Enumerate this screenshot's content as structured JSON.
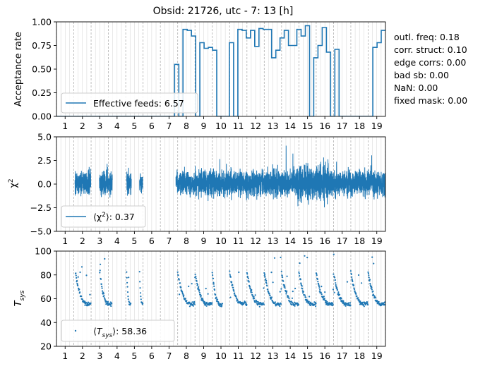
{
  "chart_data": [
    {
      "type": "line",
      "title": "Obsid: 21726, utc - 7: 13 [h]",
      "ylabel": "Acceptance rate",
      "xlim": [
        0.5,
        19.5
      ],
      "ylim": [
        0.0,
        1.0
      ],
      "yticks": [
        "0.00",
        "0.25",
        "0.50",
        "0.75",
        "1.00"
      ],
      "xticks": [
        "1",
        "2",
        "3",
        "4",
        "5",
        "6",
        "7",
        "8",
        "9",
        "10",
        "11",
        "12",
        "13",
        "14",
        "15",
        "16",
        "17",
        "18",
        "19"
      ],
      "legend": "Effective feeds: 6.57",
      "legend_position": "lower-left",
      "step_values": [
        0,
        0,
        0,
        0,
        0,
        0,
        0,
        0,
        0,
        0,
        0,
        0,
        0,
        0,
        0,
        0,
        0,
        0,
        0,
        0,
        0,
        0,
        0,
        0,
        0,
        0,
        0,
        0,
        0.55,
        0.0,
        0.92,
        0.91,
        0.85,
        0.0,
        0.78,
        0.72,
        0.73,
        0.7,
        0.0,
        0.0,
        0.0,
        0.78,
        0.0,
        0.92,
        0.91,
        0.83,
        0.91,
        0.74,
        0.93,
        0.92,
        0.92,
        0.62,
        0.7,
        0.83,
        0.91,
        0.75,
        0.75,
        0.92,
        0.85,
        0.96,
        0.0,
        0.62,
        0.75,
        0.94,
        0.68,
        0.0,
        0.71,
        0.0,
        0.0,
        0.0,
        0.0,
        0.0,
        0.0,
        0.0,
        0.0,
        0.73,
        0.78,
        0.91
      ]
    },
    {
      "type": "line",
      "ylabel": "χ²",
      "xlim": [
        0.5,
        19.5
      ],
      "ylim": [
        -5.0,
        5.0
      ],
      "yticks": [
        "−5.0",
        "−2.5",
        "0.0",
        "2.5",
        "5.0"
      ],
      "xticks": [
        "1",
        "2",
        "3",
        "4",
        "5",
        "6",
        "7",
        "8",
        "9",
        "10",
        "11",
        "12",
        "13",
        "14",
        "15",
        "16",
        "17",
        "18",
        "19"
      ],
      "legend": "⟨χ²⟩: 0.37",
      "legend_position": "lower-left",
      "segments": [
        [
          1.57,
          2.48
        ],
        [
          2.98,
          3.72
        ],
        [
          4.55,
          4.82
        ],
        [
          5.3,
          5.48
        ],
        [
          7.4,
          19.5
        ]
      ],
      "amplitude": 1.2
    },
    {
      "type": "scatter",
      "ylabel": "T_sys",
      "xlim": [
        0.5,
        19.5
      ],
      "ylim": [
        20,
        100
      ],
      "yticks": [
        "20",
        "40",
        "60",
        "80",
        "100"
      ],
      "xticks": [
        "1",
        "2",
        "3",
        "4",
        "5",
        "6",
        "7",
        "8",
        "9",
        "10",
        "11",
        "12",
        "13",
        "14",
        "15",
        "16",
        "17",
        "18",
        "19"
      ],
      "legend": "⟨T_sys⟩: 58.36",
      "legend_position": "lower-left",
      "mean": 58.36
    }
  ],
  "stats": [
    "outl. freq: 0.18",
    "corr. struct: 0.10",
    "edge corrs: 0.00",
    "bad sb: 0.00",
    "NaN: 0.00",
    "fixed mask: 0.00"
  ],
  "colors": {
    "series": "#1f77b4",
    "grid_minor": "#d3d3d3",
    "grid_major": "#b0b0b0"
  }
}
